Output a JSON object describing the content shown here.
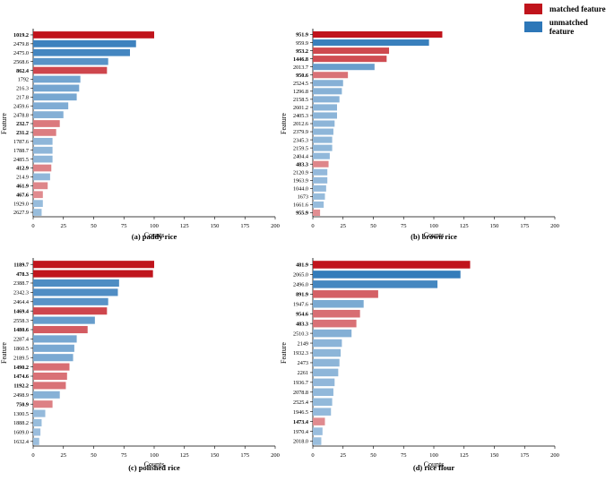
{
  "legend": {
    "matched": {
      "label": "matched feature",
      "color": "#c0141c"
    },
    "unmatched": {
      "label": "unmatched feature",
      "color": "#2d77b8"
    }
  },
  "chart_data": [
    {
      "type": "bar",
      "orientation": "horizontal",
      "title": "(a) paddy rice",
      "xlabel": "Counts",
      "ylabel": "Feature",
      "xlim": [
        0,
        200
      ],
      "xticks": [
        0,
        25,
        50,
        75,
        100,
        125,
        150,
        175,
        200
      ],
      "categories": [
        "1019.2",
        "2479.8",
        "2475.0",
        "2568.6",
        "862.4",
        "1792",
        "216.3",
        "217.8",
        "2459.6",
        "2478.8",
        "232.7",
        "231.2",
        "1787.6",
        "1788.7",
        "2485.5",
        "412.9",
        "214.9",
        "461.9",
        "467.6",
        "1929.0",
        "2627.9"
      ],
      "values": [
        100,
        85,
        80,
        62,
        61,
        39,
        38,
        36,
        29,
        25,
        22,
        19,
        16,
        16,
        16,
        15,
        14,
        12,
        8,
        8,
        7
      ],
      "matched": [
        true,
        false,
        false,
        false,
        true,
        false,
        false,
        false,
        false,
        false,
        true,
        true,
        false,
        false,
        false,
        true,
        false,
        true,
        true,
        false,
        false
      ]
    },
    {
      "type": "bar",
      "orientation": "horizontal",
      "title": "(b) brown rice",
      "xlabel": "Counts",
      "ylabel": "Feature",
      "xlim": [
        0,
        200
      ],
      "xticks": [
        0,
        25,
        50,
        75,
        100,
        125,
        150,
        175,
        200
      ],
      "categories": [
        "951.9",
        "959.9",
        "953.2",
        "1446.8",
        "2013.7",
        "950.6",
        "2524.5",
        "1296.8",
        "2158.5",
        "2601.2",
        "2405.3",
        "2012.6",
        "2379.9",
        "2345.3",
        "2159.5",
        "2404.4",
        "483.3",
        "2120.9",
        "1963.9",
        "1044.0",
        "1673",
        "1661.6",
        "955.9"
      ],
      "values": [
        107,
        96,
        63,
        61,
        51,
        29,
        25,
        24,
        22,
        20,
        20,
        18,
        17,
        16,
        16,
        14,
        13,
        12,
        12,
        11,
        10,
        9,
        6
      ],
      "matched": [
        true,
        false,
        true,
        true,
        false,
        true,
        false,
        false,
        false,
        false,
        false,
        false,
        false,
        false,
        false,
        false,
        true,
        false,
        false,
        false,
        false,
        false,
        true
      ]
    },
    {
      "type": "bar",
      "orientation": "horizontal",
      "title": "(c) polished rice",
      "xlabel": "Counts",
      "ylabel": "Feature",
      "xlim": [
        0,
        200
      ],
      "xticks": [
        0,
        25,
        50,
        75,
        100,
        125,
        150,
        175,
        200
      ],
      "categories": [
        "1189.7",
        "478.3",
        "2388.7",
        "2342.3",
        "2464.4",
        "1469.4",
        "2558.3",
        "1480.6",
        "2287.4",
        "1860.5",
        "2189.5",
        "1490.2",
        "1474.6",
        "1192.2",
        "2498.9",
        "750.9",
        "1300.5",
        "1888.2",
        "1609.0",
        "1632.4"
      ],
      "values": [
        100,
        99,
        71,
        70,
        62,
        61,
        51,
        45,
        36,
        34,
        33,
        30,
        28,
        27,
        22,
        16,
        10,
        7,
        6,
        5
      ],
      "matched": [
        true,
        true,
        false,
        false,
        false,
        true,
        false,
        true,
        false,
        false,
        false,
        true,
        true,
        true,
        false,
        true,
        false,
        false,
        false,
        false
      ]
    },
    {
      "type": "bar",
      "orientation": "horizontal",
      "title": "(d) rice flour",
      "xlabel": "Counts",
      "ylabel": "Feature",
      "xlim": [
        0,
        200
      ],
      "xticks": [
        0,
        25,
        50,
        75,
        100,
        125,
        150,
        175,
        200
      ],
      "categories": [
        "481.9",
        "2065.0",
        "2496.0",
        "891.9",
        "1947.6",
        "954.6",
        "483.3",
        "2510.3",
        "2149",
        "1932.3",
        "2473",
        "2261",
        "1936.7",
        "2078.8",
        "2525.4",
        "1946.5",
        "1473.4",
        "1970.4",
        "2018.0"
      ],
      "values": [
        130,
        122,
        103,
        54,
        42,
        39,
        36,
        32,
        24,
        23,
        22,
        21,
        18,
        17,
        16,
        15,
        10,
        8,
        7
      ],
      "matched": [
        true,
        false,
        false,
        true,
        false,
        true,
        true,
        false,
        false,
        false,
        false,
        false,
        false,
        false,
        false,
        false,
        true,
        false,
        false
      ]
    }
  ]
}
